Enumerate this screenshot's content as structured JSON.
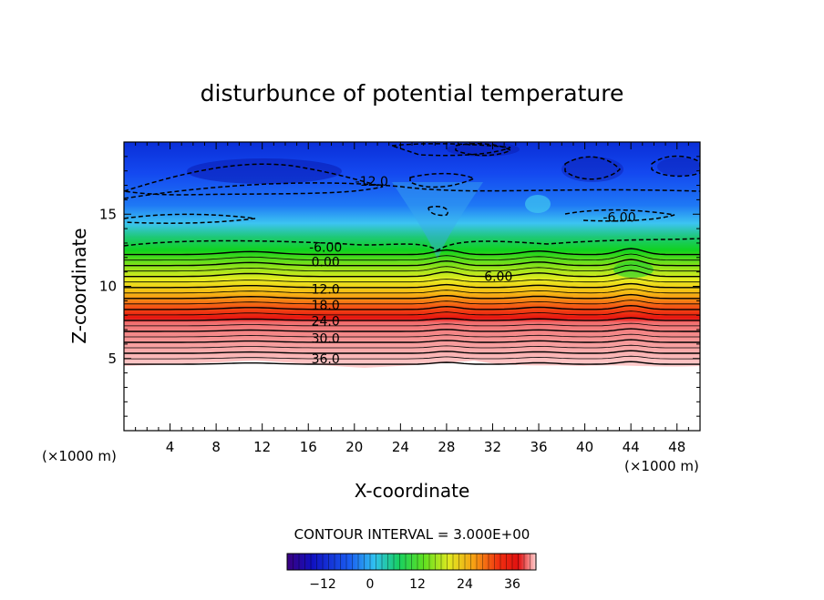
{
  "chart_data": {
    "type": "heatmap",
    "title": "disturbunce of potential temperature",
    "xlabel": "X-coordinate",
    "ylabel": "Z-coordinate",
    "x_unit": "(×1000 m)",
    "y_unit": "(×1000 m)",
    "xlim": [
      0,
      50
    ],
    "ylim": [
      0,
      20
    ],
    "x_ticks": [
      4,
      8,
      12,
      16,
      20,
      24,
      28,
      32,
      36,
      40,
      44,
      48
    ],
    "y_ticks": [
      5,
      10,
      15
    ],
    "contour_interval": "CONTOUR INTERVAL = 3.000E+00",
    "contour_labels": [
      {
        "text": "-12.0",
        "x": 21.5,
        "z": 17.3
      },
      {
        "text": "-6.00",
        "x": 43.0,
        "z": 14.8
      },
      {
        "text": "-6.00",
        "x": 17.5,
        "z": 12.7
      },
      {
        "text": "0.00",
        "x": 17.5,
        "z": 11.7
      },
      {
        "text": "6.00",
        "x": 32.5,
        "z": 10.7
      },
      {
        "text": "12.0",
        "x": 17.5,
        "z": 9.8
      },
      {
        "text": "18.0",
        "x": 17.5,
        "z": 8.7
      },
      {
        "text": "24.0",
        "x": 17.5,
        "z": 7.6
      },
      {
        "text": "30.0",
        "x": 17.5,
        "z": 6.4
      },
      {
        "text": "36.0",
        "x": 17.5,
        "z": 5.0
      }
    ],
    "colorbar": {
      "min": -21,
      "max": 42,
      "ticks": [
        -12,
        0,
        12,
        24,
        36
      ]
    }
  }
}
